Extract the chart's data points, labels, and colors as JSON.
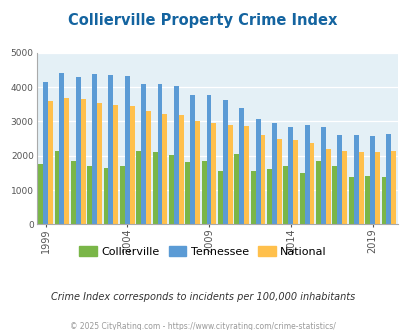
{
  "title": "Collierville Property Crime Index",
  "years": [
    1999,
    2000,
    2001,
    2002,
    2003,
    2004,
    2005,
    2006,
    2007,
    2008,
    2009,
    2010,
    2011,
    2012,
    2013,
    2014,
    2015,
    2016,
    2017,
    2018,
    2019,
    2020
  ],
  "collierville": [
    1750,
    2150,
    1850,
    1700,
    1650,
    1700,
    2150,
    2100,
    2020,
    1820,
    1850,
    1570,
    2050,
    1570,
    1620,
    1700,
    1500,
    1850,
    1700,
    1380,
    1400,
    1380
  ],
  "tennessee": [
    4150,
    4420,
    4300,
    4380,
    4340,
    4330,
    4100,
    4080,
    4040,
    3770,
    3760,
    3620,
    3380,
    3060,
    2960,
    2850,
    2890,
    2840,
    2600,
    2600,
    2590,
    2620
  ],
  "national": [
    3600,
    3670,
    3640,
    3550,
    3470,
    3440,
    3300,
    3230,
    3200,
    3010,
    2940,
    2890,
    2870,
    2600,
    2490,
    2470,
    2370,
    2200,
    2150,
    2120,
    2100,
    2130
  ],
  "collierville_color": "#7ab648",
  "tennessee_color": "#5b9bd5",
  "national_color": "#ffc04c",
  "bg_color": "#e4f0f6",
  "ylim": [
    0,
    5000
  ],
  "yticks": [
    0,
    1000,
    2000,
    3000,
    4000,
    5000
  ],
  "xlabel_years": [
    1999,
    2004,
    2009,
    2014,
    2019
  ],
  "subtitle": "Crime Index corresponds to incidents per 100,000 inhabitants",
  "footer": "© 2025 CityRating.com - https://www.cityrating.com/crime-statistics/",
  "title_color": "#1464a0",
  "subtitle_color": "#333333",
  "footer_color": "#999999"
}
